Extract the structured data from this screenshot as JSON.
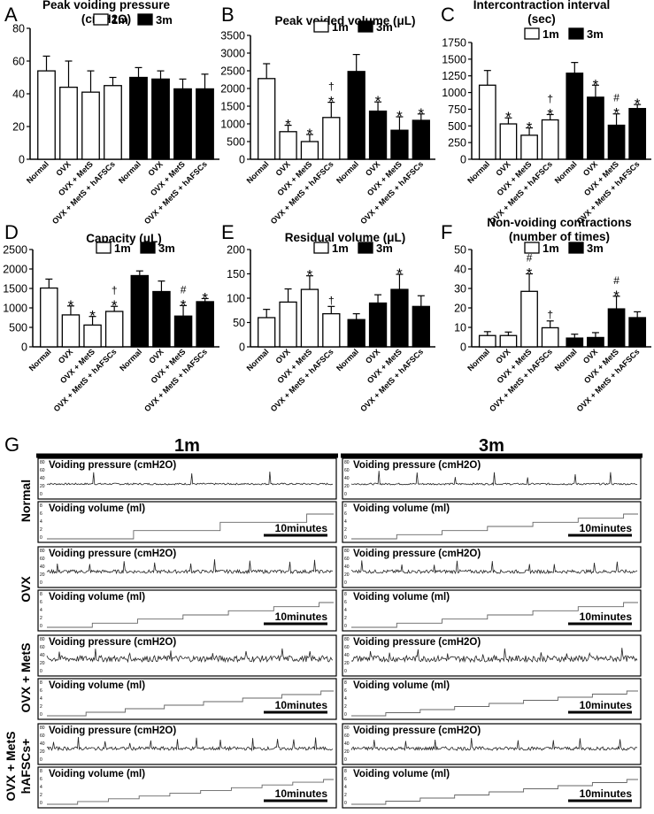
{
  "chart_data": [
    {
      "type": "bar",
      "panel": "A",
      "title": "Peak voiding pressure",
      "title2": "(cmH2O)",
      "ylim": [
        0,
        80
      ],
      "yticks": [
        0,
        20,
        40,
        60,
        80
      ],
      "categories": [
        "Normal",
        "OVX",
        "OVX + MetS",
        "OVX + MetS + hAFSCs"
      ],
      "series": [
        {
          "name": "1m",
          "values": [
            54,
            44,
            41,
            45
          ],
          "errors": [
            9,
            16,
            13,
            5
          ],
          "marks": [
            "",
            "",
            "",
            ""
          ]
        },
        {
          "name": "3m",
          "values": [
            50,
            49,
            43,
            43
          ],
          "errors": [
            6,
            5,
            6,
            9
          ],
          "marks": [
            "",
            "",
            "",
            ""
          ]
        }
      ]
    },
    {
      "type": "bar",
      "panel": "B",
      "title": "Peak voided volume (μL)",
      "title2": "",
      "ylim": [
        0,
        3500
      ],
      "yticks": [
        0,
        500,
        1000,
        1500,
        2000,
        2500,
        3000,
        3500
      ],
      "categories": [
        "Normal",
        "OVX",
        "OVX + MetS",
        "OVX + MetS + hAFSCs"
      ],
      "series": [
        {
          "name": "1m",
          "values": [
            2280,
            780,
            500,
            1180
          ],
          "errors": [
            420,
            180,
            200,
            430
          ],
          "marks": [
            "",
            "*",
            "*",
            "†*"
          ]
        },
        {
          "name": "3m",
          "values": [
            2480,
            1360,
            820,
            1100
          ],
          "errors": [
            480,
            260,
            380,
            180
          ],
          "marks": [
            "",
            "*",
            "*",
            "*"
          ]
        }
      ]
    },
    {
      "type": "bar",
      "panel": "C",
      "title": "Intercontraction interval",
      "title2": "(sec)",
      "ylim": [
        0,
        1750
      ],
      "yticks": [
        0,
        250,
        500,
        750,
        1000,
        1250,
        1500,
        1750
      ],
      "categories": [
        "Normal",
        "OVX",
        "OVX + MetS",
        "OVX + MetS + hAFSCs"
      ],
      "series": [
        {
          "name": "1m",
          "values": [
            1110,
            530,
            360,
            590
          ],
          "errors": [
            220,
            90,
            110,
            80
          ],
          "marks": [
            "",
            "*",
            "*",
            "†*"
          ]
        },
        {
          "name": "3m",
          "values": [
            1290,
            930,
            510,
            760
          ],
          "errors": [
            160,
            180,
            170,
            60
          ],
          "marks": [
            "",
            "*",
            "#*",
            "*"
          ]
        }
      ]
    },
    {
      "type": "bar",
      "panel": "D",
      "title": "Capacity (μL)",
      "title2": "",
      "ylim": [
        0,
        2500
      ],
      "yticks": [
        0,
        500,
        1000,
        1500,
        2000,
        2500
      ],
      "categories": [
        "Normal",
        "OVX",
        "OVX + MetS",
        "OVX + MetS + hAFSCs"
      ],
      "series": [
        {
          "name": "1m",
          "values": [
            1510,
            820,
            560,
            910
          ],
          "errors": [
            230,
            230,
            220,
            130
          ],
          "marks": [
            "",
            "*",
            "*",
            "†*"
          ]
        },
        {
          "name": "3m",
          "values": [
            1830,
            1420,
            790,
            1160
          ],
          "errors": [
            120,
            270,
            270,
            80
          ],
          "marks": [
            "",
            "",
            "#*",
            "*"
          ]
        }
      ]
    },
    {
      "type": "bar",
      "panel": "E",
      "title": "Residual volume (μL)",
      "title2": "",
      "ylim": [
        0,
        200
      ],
      "yticks": [
        0,
        50,
        100,
        150,
        200
      ],
      "categories": [
        "Normal",
        "OVX",
        "OVX + MetS",
        "OVX + MetS + hAFSCs"
      ],
      "series": [
        {
          "name": "1m",
          "values": [
            60,
            92,
            118,
            68
          ],
          "errors": [
            17,
            27,
            28,
            15
          ],
          "marks": [
            "",
            "",
            "*",
            "†"
          ]
        },
        {
          "name": "3m",
          "values": [
            56,
            90,
            118,
            83
          ],
          "errors": [
            12,
            17,
            31,
            22
          ],
          "marks": [
            "",
            "",
            "*",
            ""
          ]
        }
      ]
    },
    {
      "type": "bar",
      "panel": "F",
      "title": "Non-voiding contractions",
      "title2": "(number of times)",
      "ylim": [
        0,
        50
      ],
      "yticks": [
        0,
        10,
        20,
        30,
        40,
        50
      ],
      "categories": [
        "Normal",
        "OVX",
        "OVX + MetS",
        "OVX + MetS + hAFSCs"
      ],
      "series": [
        {
          "name": "1m",
          "values": [
            5.8,
            5.8,
            28.5,
            9.8
          ],
          "errors": [
            2,
            1.8,
            9,
            3.5
          ],
          "marks": [
            "",
            "",
            "#*",
            "†"
          ]
        },
        {
          "name": "3m",
          "values": [
            4.5,
            4.8,
            19.5,
            15
          ],
          "errors": [
            2,
            2.5,
            6.5,
            3
          ],
          "marks": [
            "",
            "",
            "#*",
            ""
          ]
        }
      ]
    }
  ],
  "traces": {
    "panel": "G",
    "columns": [
      "1m",
      "3m"
    ],
    "row_labels": [
      "Normal",
      "OVX",
      "OVX + MetS",
      "OVX + MetS\nhAFSCs+"
    ],
    "pressure_label": "Voiding pressure (cmH2O)",
    "volume_label": "Voiding volume (ml)",
    "scale_label": "10minutes",
    "pressure_ticks": [
      "0",
      "20",
      "40",
      "60",
      "80"
    ],
    "volume_ticks": [
      "0",
      "2",
      "4",
      "6",
      "8"
    ],
    "volume_steps": [
      [
        3,
        5
      ],
      [
        6,
        6
      ],
      [
        6,
        6
      ],
      [
        6,
        5
      ],
      [
        7,
        7
      ],
      [
        8,
        7
      ],
      [
        9,
        10
      ],
      [
        8,
        8
      ]
    ]
  }
}
